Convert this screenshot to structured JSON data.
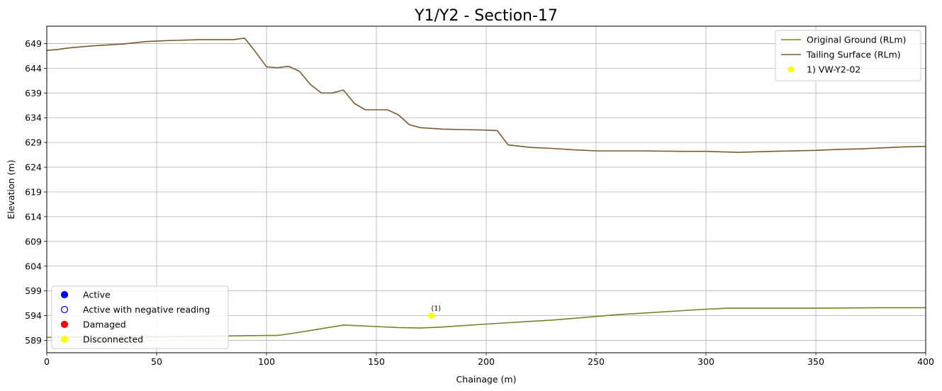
{
  "chart_data": {
    "type": "line",
    "title": "Y1/Y2 - Section-17",
    "xlabel": "Chainage (m)",
    "ylabel": "Elevation (m)",
    "xlim": [
      0,
      400
    ],
    "ylim": [
      586.5,
      652.5
    ],
    "xticks": [
      0,
      50,
      100,
      150,
      200,
      250,
      300,
      350,
      400
    ],
    "yticks": [
      589,
      594,
      599,
      604,
      609,
      614,
      619,
      624,
      629,
      634,
      639,
      644,
      649
    ],
    "grid": true,
    "series": [
      {
        "name": "Original Ground (RLm)",
        "color": "#7a7f2a",
        "x": [
          0,
          50,
          100,
          105,
          110,
          120,
          135,
          140,
          150,
          160,
          170,
          180,
          200,
          230,
          260,
          300,
          310,
          350,
          380,
          400
        ],
        "y": [
          589.6,
          589.7,
          590.0,
          590.0,
          590.3,
          591.0,
          592.1,
          592.0,
          591.8,
          591.6,
          591.5,
          591.7,
          592.3,
          593.1,
          594.2,
          595.3,
          595.5,
          595.5,
          595.6,
          595.6
        ]
      },
      {
        "name": "Tailing Surface (RLm)",
        "color": "#7b5a2e",
        "x": [
          0,
          5,
          10,
          20,
          35,
          45,
          55,
          70,
          85,
          90,
          95,
          100,
          105,
          110,
          115,
          120,
          125,
          130,
          135,
          140,
          145,
          150,
          155,
          160,
          165,
          170,
          180,
          190,
          200,
          205,
          210,
          220,
          230,
          240,
          250,
          270,
          290,
          300,
          315,
          330,
          350,
          360,
          370,
          380,
          390,
          400
        ],
        "y": [
          647.6,
          647.8,
          648.1,
          648.5,
          648.9,
          649.4,
          649.6,
          649.8,
          649.8,
          650.1,
          647.3,
          644.3,
          644.1,
          644.4,
          643.4,
          640.7,
          639.0,
          639.0,
          639.6,
          636.9,
          635.6,
          635.6,
          635.6,
          634.6,
          632.6,
          632.0,
          631.7,
          631.6,
          631.5,
          631.4,
          628.5,
          628.0,
          627.8,
          627.5,
          627.3,
          627.3,
          627.2,
          627.2,
          627.0,
          627.2,
          627.4,
          627.6,
          627.7,
          627.9,
          628.1,
          628.2
        ]
      }
    ],
    "points": [
      {
        "name": "1) VW-Y2-02",
        "label": "(1)",
        "x": 175,
        "y": 594.0,
        "color": "#ffff00"
      }
    ],
    "status_legend": [
      {
        "name": "Active",
        "color": "#0000ff",
        "filled": true
      },
      {
        "name": "Active with negative reading",
        "color": "#0000ff",
        "filled": false
      },
      {
        "name": "Damaged",
        "color": "#ff0000",
        "filled": true
      },
      {
        "name": "Disconnected",
        "color": "#ffff00",
        "filled": true
      }
    ],
    "legend_position": "top-right",
    "status_legend_position": "bottom-left"
  }
}
